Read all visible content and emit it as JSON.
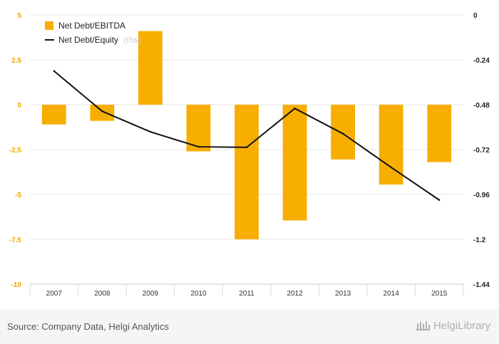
{
  "chart_data": {
    "type": "bar+line",
    "categories": [
      "2007",
      "2008",
      "2009",
      "2010",
      "2011",
      "2012",
      "2013",
      "2014",
      "2015"
    ],
    "series": [
      {
        "name": "Net Debt/EBITDA",
        "type": "bar",
        "axis": "left",
        "color": "#f7ae00",
        "values": [
          -1.1,
          -0.9,
          4.1,
          -2.6,
          -7.5,
          -6.45,
          -3.05,
          -4.45,
          -3.2
        ]
      },
      {
        "name": "Net Debt/Equity",
        "suffix": "(rhs)",
        "type": "line",
        "axis": "right",
        "color": "#111111",
        "values": [
          -0.3,
          -0.515,
          -0.625,
          -0.705,
          -0.708,
          -0.5,
          -0.635,
          -0.815,
          -0.99
        ]
      }
    ],
    "y_left": {
      "ylim": [
        -10,
        5
      ],
      "ticks": [
        "5",
        "2.5",
        "0",
        "-2.5",
        "-5",
        "-7.5",
        "-10"
      ],
      "tick_values": [
        5,
        2.5,
        0,
        -2.5,
        -5,
        -7.5,
        -10
      ]
    },
    "y_right": {
      "ylim": [
        -1.44,
        0
      ],
      "ticks": [
        "0",
        "-0.24",
        "-0.48",
        "-0.72",
        "-0.96",
        "-1.2",
        "-1.44"
      ],
      "tick_values": [
        0,
        -0.24,
        -0.48,
        -0.72,
        -0.96,
        -1.2,
        -1.44
      ]
    },
    "grid": true,
    "legend_position": "top-left"
  },
  "footer": {
    "source": "Source: Company Data, Helgi Analytics",
    "brand": "HelgiLibrary"
  },
  "colors": {
    "bar": "#f7ae00",
    "line": "#111111",
    "left_axis_text": "#f0a500",
    "grid": "#e6e6e6"
  }
}
